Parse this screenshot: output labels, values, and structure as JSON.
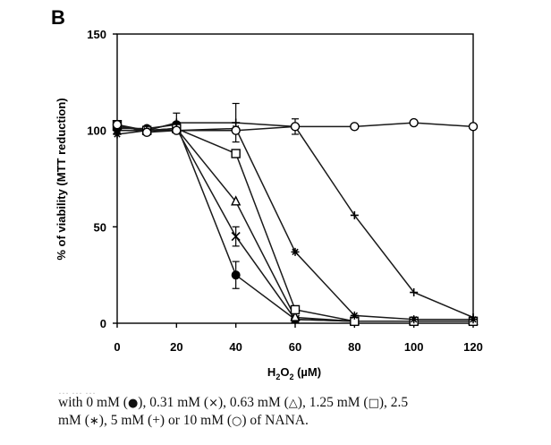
{
  "panel_label": "B",
  "chart_data": {
    "type": "line",
    "xlabel_main": "H",
    "xlabel_sub": "2",
    "xlabel_main2": "O",
    "xlabel_sub2": "2",
    "xlabel_unit": " (µM)",
    "ylabel": "% of viability (MTT reduction)",
    "xlim": [
      0,
      120
    ],
    "ylim": [
      0,
      150
    ],
    "xticks": [
      0,
      20,
      40,
      60,
      80,
      100,
      120
    ],
    "yticks": [
      0,
      50,
      100,
      150
    ],
    "series": [
      {
        "name": "0 mM",
        "marker": "filled-circle",
        "x": [
          0,
          10,
          20,
          40,
          60,
          80,
          100,
          120
        ],
        "y": [
          101,
          101,
          103,
          25,
          2,
          1,
          1,
          1
        ],
        "err": [
          0,
          0,
          0,
          7,
          0,
          0,
          0,
          0
        ]
      },
      {
        "name": "0.31 mM",
        "marker": "x",
        "x": [
          0,
          10,
          20,
          40,
          60,
          80,
          100,
          120
        ],
        "y": [
          100,
          100,
          101,
          45,
          2,
          1,
          1,
          1
        ],
        "err": [
          0,
          0,
          0,
          5,
          0,
          0,
          0,
          0
        ]
      },
      {
        "name": "0.63 mM",
        "marker": "triangle",
        "x": [
          0,
          10,
          20,
          40,
          60,
          80,
          100,
          120
        ],
        "y": [
          102,
          100,
          101,
          63,
          3,
          1,
          1,
          1
        ],
        "err": [
          0,
          0,
          0,
          0,
          0,
          0,
          0,
          0
        ]
      },
      {
        "name": "1.25 mM",
        "marker": "square",
        "x": [
          0,
          10,
          20,
          40,
          60,
          80,
          100,
          120
        ],
        "y": [
          103,
          100,
          101,
          88,
          7,
          1,
          1,
          1
        ],
        "err": [
          0,
          0,
          0,
          0,
          0,
          0,
          0,
          0
        ]
      },
      {
        "name": "2.5 mM",
        "marker": "asterisk",
        "x": [
          0,
          10,
          20,
          40,
          60,
          80,
          100,
          120
        ],
        "y": [
          98,
          100,
          100,
          101,
          37,
          4,
          2,
          2
        ],
        "err": [
          0,
          0,
          0,
          0,
          0,
          0,
          0,
          0
        ]
      },
      {
        "name": "5 mM",
        "marker": "plus",
        "x": [
          0,
          10,
          20,
          40,
          60,
          80,
          100,
          120
        ],
        "y": [
          100,
          100,
          104,
          104,
          102,
          56,
          16,
          3
        ],
        "err": [
          0,
          0,
          5,
          10,
          4,
          0,
          0,
          0
        ]
      },
      {
        "name": "10 mM",
        "marker": "open-circle",
        "x": [
          0,
          10,
          20,
          40,
          60,
          80,
          100,
          120
        ],
        "y": [
          103,
          99,
          100,
          100,
          102,
          102,
          104,
          102
        ],
        "err": [
          0,
          0,
          0,
          0,
          0,
          0,
          0,
          0
        ]
      }
    ]
  },
  "caption": {
    "faded_line": "… … …",
    "p1": "with 0 mM (",
    "s1": "●",
    "p2": "), 0.31 mM (",
    "s2": "×",
    "p3": "), 0.63 mM (",
    "s3": "△",
    "p4": "), 1.25 mM (",
    "s4": "□",
    "p5": "), 2.5",
    "p6": "mM (",
    "s6": "∗",
    "p7": "), 5 mM (+) or 10 mM (",
    "s7": "○",
    "p8": ") of NANA."
  }
}
